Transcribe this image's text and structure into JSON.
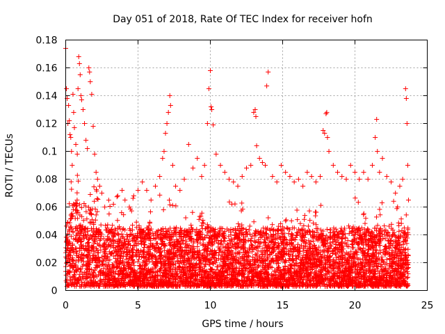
{
  "chart_data": {
    "type": "scatter",
    "title": "Day 051 of 2018, Rate Of TEC Index for receiver hofn",
    "xlabel": "GPS time / hours",
    "ylabel": "ROTI / TECUs",
    "xlim": [
      0,
      25
    ],
    "ylim": [
      0,
      0.18
    ],
    "xticks": [
      0,
      5,
      10,
      15,
      20,
      25
    ],
    "xtick_labels": [
      "0",
      "5",
      "10",
      "15",
      "20",
      "25"
    ],
    "yticks": [
      0,
      0.02,
      0.04,
      0.06,
      0.08,
      0.1,
      0.12,
      0.14,
      0.16,
      0.18
    ],
    "ytick_labels": [
      "0",
      "0.02",
      "0.04",
      "0.06",
      "0.08",
      "0.1",
      "0.12",
      "0.14",
      "0.16",
      "0.18"
    ],
    "grid": true,
    "marker": "plus",
    "color": "#ff0000",
    "series": [
      {
        "name": "ROTI",
        "points": [
          [
            0.0,
            0.174
          ],
          [
            0.05,
            0.145
          ],
          [
            0.1,
            0.138
          ],
          [
            0.15,
            0.12
          ],
          [
            0.2,
            0.133
          ],
          [
            0.25,
            0.122
          ],
          [
            0.3,
            0.112
          ],
          [
            0.35,
            0.11
          ],
          [
            0.4,
            0.1
          ],
          [
            0.45,
            0.09
          ],
          [
            0.5,
            0.141
          ],
          [
            0.55,
            0.128
          ],
          [
            0.6,
            0.117
          ],
          [
            0.7,
            0.105
          ],
          [
            0.8,
            0.098
          ],
          [
            0.85,
            0.145
          ],
          [
            0.9,
            0.168
          ],
          [
            0.95,
            0.163
          ],
          [
            1.0,
            0.155
          ],
          [
            1.05,
            0.14
          ],
          [
            1.1,
            0.137
          ],
          [
            1.2,
            0.13
          ],
          [
            1.3,
            0.12
          ],
          [
            1.4,
            0.108
          ],
          [
            1.5,
            0.102
          ],
          [
            1.6,
            0.16
          ],
          [
            1.65,
            0.157
          ],
          [
            1.7,
            0.15
          ],
          [
            1.8,
            0.141
          ],
          [
            1.9,
            0.118
          ],
          [
            2.0,
            0.098
          ],
          [
            2.1,
            0.085
          ],
          [
            2.2,
            0.08
          ],
          [
            2.35,
            0.075
          ],
          [
            2.5,
            0.07
          ],
          [
            2.7,
            0.06
          ],
          [
            3.0,
            0.055
          ],
          [
            3.3,
            0.062
          ],
          [
            3.6,
            0.068
          ],
          [
            3.9,
            0.072
          ],
          [
            4.1,
            0.065
          ],
          [
            4.4,
            0.06
          ],
          [
            4.7,
            0.068
          ],
          [
            5.0,
            0.072
          ],
          [
            5.3,
            0.078
          ],
          [
            5.6,
            0.072
          ],
          [
            5.9,
            0.065
          ],
          [
            6.2,
            0.075
          ],
          [
            6.5,
            0.082
          ],
          [
            6.7,
            0.095
          ],
          [
            6.8,
            0.1
          ],
          [
            6.9,
            0.113
          ],
          [
            7.0,
            0.12
          ],
          [
            7.1,
            0.128
          ],
          [
            7.2,
            0.14
          ],
          [
            7.25,
            0.133
          ],
          [
            7.4,
            0.09
          ],
          [
            7.6,
            0.075
          ],
          [
            7.9,
            0.072
          ],
          [
            8.2,
            0.08
          ],
          [
            8.5,
            0.105
          ],
          [
            8.8,
            0.088
          ],
          [
            9.1,
            0.095
          ],
          [
            9.4,
            0.082
          ],
          [
            9.6,
            0.09
          ],
          [
            9.8,
            0.12
          ],
          [
            9.9,
            0.145
          ],
          [
            10.0,
            0.158
          ],
          [
            10.05,
            0.132
          ],
          [
            10.1,
            0.13
          ],
          [
            10.2,
            0.119
          ],
          [
            10.4,
            0.098
          ],
          [
            10.7,
            0.09
          ],
          [
            11.0,
            0.085
          ],
          [
            11.3,
            0.08
          ],
          [
            11.6,
            0.078
          ],
          [
            11.9,
            0.075
          ],
          [
            12.2,
            0.082
          ],
          [
            12.5,
            0.088
          ],
          [
            12.8,
            0.09
          ],
          [
            13.0,
            0.128
          ],
          [
            13.1,
            0.13
          ],
          [
            13.15,
            0.125
          ],
          [
            13.2,
            0.104
          ],
          [
            13.4,
            0.095
          ],
          [
            13.6,
            0.092
          ],
          [
            13.8,
            0.09
          ],
          [
            13.9,
            0.147
          ],
          [
            14.0,
            0.157
          ],
          [
            14.3,
            0.082
          ],
          [
            14.6,
            0.078
          ],
          [
            14.9,
            0.09
          ],
          [
            15.2,
            0.085
          ],
          [
            15.5,
            0.082
          ],
          [
            15.8,
            0.078
          ],
          [
            16.1,
            0.08
          ],
          [
            16.4,
            0.075
          ],
          [
            16.7,
            0.085
          ],
          [
            17.0,
            0.082
          ],
          [
            17.3,
            0.078
          ],
          [
            17.6,
            0.082
          ],
          [
            17.8,
            0.115
          ],
          [
            17.9,
            0.113
          ],
          [
            18.0,
            0.127
          ],
          [
            18.05,
            0.128
          ],
          [
            18.1,
            0.11
          ],
          [
            18.2,
            0.1
          ],
          [
            18.5,
            0.09
          ],
          [
            18.8,
            0.085
          ],
          [
            19.1,
            0.082
          ],
          [
            19.4,
            0.08
          ],
          [
            19.7,
            0.09
          ],
          [
            20.0,
            0.085
          ],
          [
            20.3,
            0.08
          ],
          [
            20.6,
            0.085
          ],
          [
            20.9,
            0.08
          ],
          [
            21.2,
            0.09
          ],
          [
            21.4,
            0.11
          ],
          [
            21.5,
            0.123
          ],
          [
            21.55,
            0.1
          ],
          [
            21.7,
            0.085
          ],
          [
            21.9,
            0.095
          ],
          [
            22.2,
            0.082
          ],
          [
            22.5,
            0.078
          ],
          [
            22.8,
            0.07
          ],
          [
            23.1,
            0.075
          ],
          [
            23.3,
            0.08
          ],
          [
            23.5,
            0.145
          ],
          [
            23.55,
            0.138
          ],
          [
            23.6,
            0.12
          ],
          [
            23.65,
            0.09
          ],
          [
            23.7,
            0.065
          ]
        ],
        "band": {
          "description_points": "dense cloud of points along the full x range",
          "x_range": [
            0,
            23.7
          ],
          "y_floor": 0.003,
          "y_typical_top": 0.045,
          "count": 5200
        }
      }
    ]
  }
}
